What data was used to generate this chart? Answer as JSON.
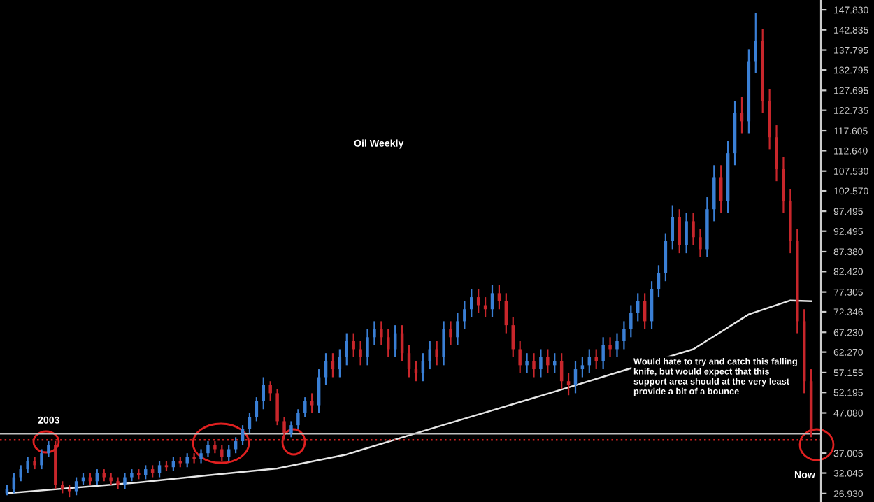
{
  "chart_data": {
    "type": "candlestick",
    "categories": [
      null,
      null,
      null,
      null,
      null,
      null,
      null,
      null,
      null,
      null,
      null,
      null,
      null,
      null,
      null,
      null,
      null,
      null,
      null,
      null,
      null,
      null,
      null,
      null,
      null,
      null,
      null,
      null,
      null,
      null,
      null,
      null,
      null,
      null,
      null,
      null,
      null,
      null,
      null,
      null,
      null,
      null,
      null,
      null,
      null,
      null,
      null,
      null,
      null,
      null,
      null,
      null,
      null,
      null,
      null,
      null,
      null,
      null,
      null,
      null,
      null,
      null,
      null,
      null,
      null,
      null,
      null,
      null,
      null,
      null,
      null,
      null,
      null,
      null,
      null,
      null,
      null,
      null,
      null,
      null,
      null,
      null,
      null,
      null,
      null,
      null,
      null,
      null,
      null,
      null,
      null,
      null,
      null,
      null,
      null,
      null,
      null,
      null,
      null,
      null,
      null,
      null,
      null,
      null,
      null,
      null,
      null,
      null,
      null,
      null,
      null,
      null,
      null,
      null,
      null,
      null,
      null
    ],
    "ohlc": [
      [
        27,
        29,
        26.5,
        28
      ],
      [
        28,
        32,
        27,
        31
      ],
      [
        31,
        34,
        30,
        33
      ],
      [
        33,
        36,
        32,
        35
      ],
      [
        35,
        36,
        33,
        34
      ],
      [
        34,
        38,
        33,
        37
      ],
      [
        37,
        40,
        36,
        39
      ],
      [
        39,
        40,
        28,
        29
      ],
      [
        29,
        30,
        27,
        28
      ],
      [
        28,
        29,
        26,
        27.5
      ],
      [
        27.5,
        31,
        26.5,
        30
      ],
      [
        30,
        32,
        29,
        31
      ],
      [
        31,
        32,
        29,
        30
      ],
      [
        30,
        33,
        29,
        32
      ],
      [
        32,
        33,
        30,
        31
      ],
      [
        31,
        32,
        29,
        30
      ],
      [
        30,
        31,
        28,
        29
      ],
      [
        29,
        32,
        28,
        31
      ],
      [
        31,
        33,
        30,
        32
      ],
      [
        32,
        33,
        30.5,
        31.5
      ],
      [
        31.5,
        34,
        30.5,
        33
      ],
      [
        33,
        34,
        31,
        32
      ],
      [
        32,
        35,
        31,
        34
      ],
      [
        34,
        35,
        32.5,
        33.5
      ],
      [
        33.5,
        36,
        32.5,
        35
      ],
      [
        35,
        36,
        33.5,
        34.5
      ],
      [
        34.5,
        37,
        33.5,
        36
      ],
      [
        36,
        37,
        34.5,
        35.5
      ],
      [
        35.5,
        38,
        34.5,
        37
      ],
      [
        37,
        40,
        36,
        39
      ],
      [
        39,
        40,
        37,
        38
      ],
      [
        38,
        39,
        35,
        36
      ],
      [
        36,
        39,
        35,
        38
      ],
      [
        38,
        41,
        37,
        40
      ],
      [
        40,
        44,
        39,
        43
      ],
      [
        43,
        47,
        42,
        46
      ],
      [
        46,
        51,
        45,
        50
      ],
      [
        50,
        56,
        48,
        54
      ],
      [
        54,
        55,
        50,
        52
      ],
      [
        52,
        53,
        44,
        45
      ],
      [
        45,
        46,
        40.5,
        42
      ],
      [
        42,
        45,
        41,
        44
      ],
      [
        44,
        48,
        43,
        47
      ],
      [
        47,
        51,
        46,
        50
      ],
      [
        50,
        52,
        47,
        49
      ],
      [
        49,
        58,
        47,
        56
      ],
      [
        56,
        62,
        54,
        60
      ],
      [
        60,
        62,
        56,
        58
      ],
      [
        58,
        63,
        56,
        61
      ],
      [
        61,
        67,
        59,
        65
      ],
      [
        65,
        67,
        61,
        63
      ],
      [
        63,
        65,
        59,
        61
      ],
      [
        61,
        68,
        59,
        66
      ],
      [
        66,
        70,
        64,
        68
      ],
      [
        68,
        70,
        64,
        66
      ],
      [
        66,
        68,
        61,
        63
      ],
      [
        63,
        69,
        61,
        67
      ],
      [
        67,
        69,
        60,
        62
      ],
      [
        62,
        64,
        56,
        58
      ],
      [
        58,
        60,
        55,
        57
      ],
      [
        57,
        62,
        55,
        60
      ],
      [
        60,
        65,
        58,
        63
      ],
      [
        63,
        65,
        59,
        61
      ],
      [
        61,
        70,
        59,
        68
      ],
      [
        68,
        70,
        64,
        66
      ],
      [
        66,
        72,
        64,
        70
      ],
      [
        70,
        75,
        68,
        73
      ],
      [
        73,
        78,
        71,
        76
      ],
      [
        76,
        78,
        72,
        74
      ],
      [
        74,
        76,
        71,
        73
      ],
      [
        73,
        79,
        71,
        77
      ],
      [
        77,
        79,
        73,
        75
      ],
      [
        75,
        77,
        67,
        69
      ],
      [
        69,
        71,
        61,
        63
      ],
      [
        63,
        65,
        57,
        59
      ],
      [
        59,
        62,
        57,
        60
      ],
      [
        60,
        62,
        56,
        58
      ],
      [
        58,
        63,
        56,
        61
      ],
      [
        61,
        63,
        57,
        59
      ],
      [
        59,
        62,
        57,
        60
      ],
      [
        60,
        62,
        53,
        55
      ],
      [
        55,
        57,
        51.5,
        54
      ],
      [
        54,
        60,
        52,
        58
      ],
      [
        58,
        61,
        56,
        59
      ],
      [
        59,
        63,
        57,
        61
      ],
      [
        61,
        63,
        58,
        60
      ],
      [
        60,
        66,
        58,
        64
      ],
      [
        64,
        66,
        61,
        63
      ],
      [
        63,
        67,
        61,
        65
      ],
      [
        65,
        70,
        63,
        68
      ],
      [
        68,
        74,
        66,
        72
      ],
      [
        72,
        77,
        70,
        75
      ],
      [
        75,
        77,
        68,
        70
      ],
      [
        70,
        80,
        68,
        78
      ],
      [
        78,
        84,
        76,
        82
      ],
      [
        82,
        92,
        80,
        90
      ],
      [
        90,
        99,
        88,
        96
      ],
      [
        96,
        98,
        87,
        89
      ],
      [
        89,
        97,
        87,
        95
      ],
      [
        95,
        97,
        89,
        91
      ],
      [
        91,
        93,
        86,
        88
      ],
      [
        88,
        101,
        86,
        98
      ],
      [
        98,
        109,
        95,
        106
      ],
      [
        106,
        109,
        97,
        100
      ],
      [
        100,
        115,
        97,
        112
      ],
      [
        112,
        125,
        109,
        122
      ],
      [
        122,
        126,
        117,
        120
      ],
      [
        120,
        138,
        117,
        135
      ],
      [
        135,
        147,
        132,
        140
      ],
      [
        140,
        143,
        122,
        125
      ],
      [
        125,
        128,
        113,
        116
      ],
      [
        116,
        119,
        105,
        108
      ],
      [
        108,
        111,
        97,
        100
      ],
      [
        100,
        103,
        87,
        90
      ],
      [
        90,
        93,
        67,
        70
      ],
      [
        70,
        73,
        52,
        55
      ],
      [
        55,
        58,
        41,
        43
      ]
    ],
    "colors": [
      "#3a7fd5",
      "#3a7fd5",
      "#3a7fd5",
      "#3a7fd5",
      "#c8262b",
      "#3a7fd5",
      "#3a7fd5",
      "#c8262b",
      "#c8262b",
      "#c8262b",
      "#3a7fd5",
      "#3a7fd5",
      "#c8262b",
      "#3a7fd5",
      "#c8262b",
      "#c8262b",
      "#c8262b",
      "#3a7fd5",
      "#3a7fd5",
      "#c8262b",
      "#3a7fd5",
      "#c8262b",
      "#3a7fd5",
      "#c8262b",
      "#3a7fd5",
      "#c8262b",
      "#3a7fd5",
      "#c8262b",
      "#3a7fd5",
      "#3a7fd5",
      "#c8262b",
      "#c8262b",
      "#3a7fd5",
      "#3a7fd5",
      "#3a7fd5",
      "#3a7fd5",
      "#3a7fd5",
      "#3a7fd5",
      "#c8262b",
      "#c8262b",
      "#c8262b",
      "#3a7fd5",
      "#3a7fd5",
      "#3a7fd5",
      "#c8262b",
      "#3a7fd5",
      "#3a7fd5",
      "#c8262b",
      "#3a7fd5",
      "#3a7fd5",
      "#c8262b",
      "#c8262b",
      "#3a7fd5",
      "#3a7fd5",
      "#c8262b",
      "#c8262b",
      "#3a7fd5",
      "#c8262b",
      "#c8262b",
      "#c8262b",
      "#3a7fd5",
      "#3a7fd5",
      "#c8262b",
      "#3a7fd5",
      "#c8262b",
      "#3a7fd5",
      "#3a7fd5",
      "#3a7fd5",
      "#c8262b",
      "#c8262b",
      "#3a7fd5",
      "#c8262b",
      "#c8262b",
      "#c8262b",
      "#c8262b",
      "#3a7fd5",
      "#c8262b",
      "#3a7fd5",
      "#c8262b",
      "#3a7fd5",
      "#c8262b",
      "#c8262b",
      "#3a7fd5",
      "#3a7fd5",
      "#3a7fd5",
      "#c8262b",
      "#3a7fd5",
      "#c8262b",
      "#3a7fd5",
      "#3a7fd5",
      "#3a7fd5",
      "#3a7fd5",
      "#c8262b",
      "#3a7fd5",
      "#3a7fd5",
      "#3a7fd5",
      "#3a7fd5",
      "#c8262b",
      "#3a7fd5",
      "#c8262b",
      "#c8262b",
      "#3a7fd5",
      "#3a7fd5",
      "#c8262b",
      "#3a7fd5",
      "#3a7fd5",
      "#c8262b",
      "#3a7fd5",
      "#3a7fd5",
      "#c8262b",
      "#c8262b",
      "#c8262b",
      "#c8262b",
      "#c8262b",
      "#c8262b",
      "#c8262b",
      "#c8262b"
    ],
    "series": [
      {
        "type": "line",
        "color": "#e6e6e6",
        "values": [
          27,
          null,
          null,
          null,
          null,
          null,
          null,
          null,
          null,
          null,
          null,
          null,
          null,
          null,
          null,
          null,
          null,
          null,
          null,
          29.7,
          null,
          null,
          null,
          null,
          null,
          null,
          null,
          null,
          null,
          31.5,
          null,
          null,
          null,
          null,
          null,
          null,
          null,
          null,
          null,
          33.2,
          null,
          null,
          null,
          null,
          null,
          null,
          null,
          null,
          null,
          36.7,
          null,
          null,
          null,
          null,
          null,
          null,
          null,
          null,
          null,
          42,
          null,
          null,
          null,
          null,
          null,
          null,
          null,
          null,
          null,
          47.2,
          null,
          null,
          null,
          null,
          null,
          null,
          null,
          null,
          null,
          52.4,
          null,
          null,
          null,
          null,
          null,
          null,
          null,
          null,
          null,
          57.7,
          null,
          null,
          null,
          null,
          null,
          null,
          null,
          null,
          null,
          63,
          null,
          null,
          null,
          null,
          null,
          null,
          null,
          71.7,
          null,
          null,
          null,
          null,
          null,
          75.2,
          null,
          null,
          75
        ]
      }
    ],
    "ylim": [
      24.8,
      150.3
    ],
    "yticks": [
      {
        "value": 147.83,
        "label": "147.830"
      },
      {
        "value": 142.835,
        "label": "142.835"
      },
      {
        "value": 137.795,
        "label": "137.795"
      },
      {
        "value": 132.795,
        "label": "132.795"
      },
      {
        "value": 127.695,
        "label": "127.695"
      },
      {
        "value": 122.735,
        "label": "122.735"
      },
      {
        "value": 117.605,
        "label": "117.605"
      },
      {
        "value": 112.64,
        "label": "112.640"
      },
      {
        "value": 107.53,
        "label": "107.530"
      },
      {
        "value": 102.57,
        "label": "102.570"
      },
      {
        "value": 97.495,
        "label": "97.495"
      },
      {
        "value": 92.495,
        "label": "92.495"
      },
      {
        "value": 87.38,
        "label": "87.380"
      },
      {
        "value": 82.42,
        "label": "82.420"
      },
      {
        "value": 77.305,
        "label": "77.305"
      },
      {
        "value": 72.346,
        "label": "72.346"
      },
      {
        "value": 67.23,
        "label": "67.230"
      },
      {
        "value": 62.27,
        "label": "62.270"
      },
      {
        "value": 57.155,
        "label": "57.155"
      },
      {
        "value": 52.195,
        "label": "52.195"
      },
      {
        "value": 47.08,
        "label": "47.080"
      },
      {
        "value": 37.005,
        "label": "37.005"
      },
      {
        "value": 32.045,
        "label": "32.045"
      },
      {
        "value": 26.93,
        "label": "26.930"
      }
    ],
    "ref_lines": [
      {
        "axis": "y",
        "value": 41.9,
        "color": "#bfbfbf",
        "line_style": "solid"
      },
      {
        "axis": "y",
        "value": 40.3,
        "color": "#d02020",
        "line_style": "dotted"
      }
    ],
    "annotations": [
      "Oil Weekly",
      "2003",
      "Would hate to try and catch this falling\nknife, but would expect that this\nsupport area should at the very least\nprovide a bit of a bounce",
      "Now"
    ],
    "tick_labels": "y",
    "grid": false
  }
}
